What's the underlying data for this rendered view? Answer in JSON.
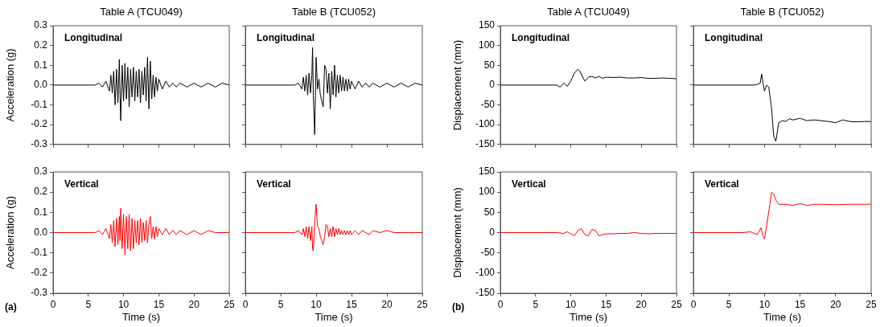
{
  "chart_data": [
    {
      "type": "line",
      "title": "Table A (TCU049)",
      "ylabel": "Acceleration (g)",
      "annotations": [
        "Longitudinal"
      ],
      "marker": "none",
      "tick_labels": "y",
      "xlim": [
        0,
        25
      ],
      "xticks": [
        0,
        5,
        10,
        15,
        20,
        25
      ],
      "ylim": [
        -0.3,
        0.3
      ],
      "yticks": [
        -0.3,
        -0.2,
        -0.1,
        {
          "value": 0,
          "label": "0.0"
        },
        0.1,
        0.2,
        0.3
      ],
      "x": [
        0,
        6,
        6.5,
        7,
        7.5,
        8,
        8.2,
        8.4,
        8.6,
        8.8,
        9,
        9.2,
        9.4,
        9.5,
        9.6,
        9.8,
        10,
        10.2,
        10.4,
        10.6,
        10.8,
        11,
        11.2,
        11.4,
        11.6,
        11.8,
        12,
        12.2,
        12.4,
        12.6,
        12.8,
        13,
        13.2,
        13.4,
        13.6,
        13.8,
        14,
        14.2,
        14.4,
        14.6,
        14.8,
        15,
        15.5,
        16,
        16.5,
        17,
        17.5,
        18,
        19,
        20,
        21,
        22,
        23,
        24,
        25
      ],
      "series": [
        {
          "color": "#000000",
          "values": [
            0,
            0,
            0.01,
            -0.01,
            0.02,
            -0.03,
            0.05,
            -0.04,
            0.07,
            -0.1,
            0.08,
            -0.09,
            0.13,
            -0.05,
            -0.18,
            0.1,
            -0.08,
            0.11,
            -0.07,
            0.09,
            -0.11,
            0.08,
            -0.06,
            0.09,
            -0.08,
            0.07,
            -0.06,
            0.08,
            -0.09,
            0.07,
            -0.05,
            0.09,
            -0.08,
            0.14,
            -0.12,
            0.12,
            -0.07,
            0.05,
            -0.06,
            0.04,
            -0.03,
            0.03,
            -0.02,
            0.02,
            -0.01,
            0.01,
            -0.01,
            0.01,
            -0.01,
            0.01,
            -0.01,
            0.01,
            -0.01,
            0.01,
            0
          ]
        }
      ]
    },
    {
      "type": "line",
      "title": "Table B (TCU052)",
      "annotations": [
        "Longitudinal"
      ],
      "marker": "none",
      "tick_labels": false,
      "xlim": [
        0,
        25
      ],
      "xticks": [
        0,
        5,
        10,
        15,
        20,
        25
      ],
      "ylim": [
        -0.3,
        0.3
      ],
      "yticks": [
        -0.3,
        -0.2,
        -0.1,
        0,
        0.1,
        0.2,
        0.3
      ],
      "x": [
        0,
        6,
        6.5,
        7,
        7.5,
        8,
        8.2,
        8.4,
        8.6,
        8.8,
        9,
        9.2,
        9.4,
        9.5,
        9.6,
        9.8,
        10,
        10.2,
        10.4,
        10.6,
        10.8,
        11,
        11.2,
        11.4,
        11.6,
        11.8,
        12,
        12.2,
        12.4,
        12.6,
        12.8,
        13,
        13.2,
        13.4,
        13.6,
        13.8,
        14,
        14.2,
        14.4,
        14.6,
        14.8,
        15,
        15.5,
        16,
        16.5,
        17,
        17.5,
        18,
        19,
        20,
        21,
        22,
        23,
        24,
        25
      ],
      "series": [
        {
          "color": "#000000",
          "values": [
            0,
            0,
            0,
            0,
            0.01,
            -0.02,
            0.04,
            -0.03,
            0.05,
            -0.05,
            0.06,
            -0.04,
            0.05,
            0.19,
            -0.05,
            -0.25,
            0.14,
            -0.02,
            0.03,
            -0.05,
            -0.08,
            -0.11,
            0.1,
            0.08,
            -0.04,
            0.06,
            -0.12,
            0.07,
            -0.05,
            0.1,
            -0.06,
            0.05,
            -0.04,
            0.05,
            -0.03,
            0.04,
            -0.03,
            0.03,
            -0.03,
            0.03,
            -0.02,
            0.02,
            -0.02,
            0.02,
            -0.01,
            0.01,
            -0.01,
            0.01,
            -0.01,
            0.01,
            -0.01,
            0.01,
            -0.01,
            0.01,
            0
          ]
        }
      ]
    },
    {
      "type": "line",
      "title": "Table A (TCU049)",
      "ylabel": "Displacement (mm)",
      "annotations": [
        "Longitudinal"
      ],
      "marker": "none",
      "tick_labels": "y",
      "xlim": [
        0,
        25
      ],
      "xticks": [
        0,
        5,
        10,
        15,
        20,
        25
      ],
      "ylim": [
        -150,
        150
      ],
      "yticks": [
        -150,
        -100,
        -50,
        0,
        50,
        100,
        150
      ],
      "x": [
        0,
        7,
        8,
        8.5,
        9,
        9.5,
        10,
        10.5,
        11,
        11.3,
        11.7,
        12,
        12.5,
        13,
        13.5,
        14,
        14.5,
        15,
        16,
        17,
        18,
        19,
        20,
        21,
        22,
        23,
        24,
        25
      ],
      "series": [
        {
          "color": "#000000",
          "values": [
            0,
            0,
            0,
            -5,
            5,
            -3,
            10,
            30,
            40,
            35,
            20,
            10,
            20,
            22,
            18,
            22,
            17,
            20,
            19,
            20,
            18,
            18,
            19,
            17,
            17,
            18,
            17,
            16
          ]
        }
      ]
    },
    {
      "type": "line",
      "title": "Table B (TCU052)",
      "annotations": [
        "Longitudinal"
      ],
      "marker": "none",
      "tick_labels": false,
      "xlim": [
        0,
        25
      ],
      "xticks": [
        0,
        5,
        10,
        15,
        20,
        25
      ],
      "ylim": [
        -150,
        150
      ],
      "yticks": [
        -150,
        -100,
        -50,
        0,
        50,
        100,
        150
      ],
      "x": [
        0,
        7,
        8,
        8.5,
        9,
        9.4,
        9.6,
        9.8,
        10,
        10.3,
        10.6,
        11,
        11.3,
        11.6,
        12,
        12.5,
        13,
        13.5,
        14,
        15,
        16,
        17,
        18,
        19,
        20,
        21,
        22,
        23,
        24,
        25
      ],
      "series": [
        {
          "color": "#000000",
          "values": [
            0,
            0,
            0,
            0,
            2,
            5,
            28,
            5,
            -15,
            0,
            -5,
            -60,
            -130,
            -142,
            -95,
            -90,
            -92,
            -85,
            -88,
            -84,
            -90,
            -88,
            -90,
            -92,
            -95,
            -88,
            -92,
            -93,
            -92,
            -92
          ]
        }
      ]
    },
    {
      "type": "line",
      "xlabel": "Time (s)",
      "ylabel": "Acceleration (g)",
      "annotations": [
        "Vertical",
        "(a)"
      ],
      "marker": "none",
      "xlim": [
        0,
        25
      ],
      "xticks": [
        0,
        5,
        10,
        15,
        20,
        25
      ],
      "ylim": [
        -0.3,
        0.3
      ],
      "yticks": [
        -0.3,
        -0.2,
        -0.1,
        {
          "value": 0,
          "label": "0.0"
        },
        0.1,
        0.2,
        0.3
      ],
      "x": [
        0,
        6,
        6.5,
        7,
        7.5,
        8,
        8.2,
        8.4,
        8.6,
        8.8,
        9,
        9.2,
        9.4,
        9.5,
        9.6,
        9.8,
        10,
        10.2,
        10.4,
        10.6,
        10.8,
        11,
        11.2,
        11.4,
        11.6,
        11.8,
        12,
        12.2,
        12.4,
        12.6,
        12.8,
        13,
        13.2,
        13.4,
        13.6,
        13.8,
        14,
        14.2,
        14.4,
        14.6,
        14.8,
        15,
        15.5,
        16,
        16.5,
        17,
        17.5,
        18,
        19,
        20,
        21,
        22,
        23,
        24,
        25
      ],
      "series": [
        {
          "color": "#ff0000",
          "values": [
            0,
            0,
            0.01,
            -0.01,
            0.02,
            -0.03,
            0.04,
            -0.05,
            0.06,
            -0.07,
            0.07,
            -0.06,
            0.08,
            -0.04,
            0.12,
            -0.08,
            0.09,
            -0.11,
            0.08,
            -0.08,
            0.09,
            -0.09,
            0.07,
            -0.08,
            0.06,
            -0.05,
            0.06,
            -0.06,
            0.07,
            -0.05,
            0.05,
            -0.04,
            0.06,
            -0.05,
            0.04,
            0.08,
            -0.03,
            0.03,
            -0.03,
            0.03,
            -0.02,
            0.02,
            -0.01,
            0.02,
            -0.01,
            0.01,
            -0.01,
            0.01,
            -0.01,
            0.01,
            -0.01,
            0.01,
            0,
            0,
            0
          ]
        }
      ]
    },
    {
      "type": "line",
      "xlabel": "Time (s)",
      "annotations": [
        "Vertical"
      ],
      "marker": "none",
      "tick_labels": "x",
      "xlim": [
        0,
        25
      ],
      "xticks": [
        0,
        5,
        10,
        15,
        20,
        25
      ],
      "ylim": [
        -0.3,
        0.3
      ],
      "yticks": [
        -0.3,
        -0.2,
        -0.1,
        0,
        0.1,
        0.2,
        0.3
      ],
      "x": [
        0,
        6,
        6.5,
        7,
        7.5,
        8,
        8.2,
        8.4,
        8.6,
        8.8,
        9,
        9.2,
        9.4,
        9.5,
        9.6,
        9.8,
        10,
        10.2,
        10.4,
        10.6,
        10.8,
        11,
        11.2,
        11.4,
        11.6,
        11.8,
        12,
        12.2,
        12.4,
        12.6,
        12.8,
        13,
        13.2,
        13.4,
        13.6,
        13.8,
        14,
        14.2,
        14.4,
        14.6,
        14.8,
        15,
        15.5,
        16,
        16.5,
        17,
        17.5,
        18,
        19,
        20,
        21,
        22,
        23,
        24,
        25
      ],
      "series": [
        {
          "color": "#ff0000",
          "values": [
            0,
            0,
            0,
            0,
            0.01,
            -0.01,
            0.02,
            -0.02,
            0.03,
            -0.03,
            0.03,
            -0.04,
            0.03,
            -0.08,
            -0.09,
            0.05,
            0.14,
            0.03,
            0.02,
            -0.02,
            -0.04,
            -0.06,
            -0.02,
            0.04,
            0.03,
            -0.02,
            0.02,
            -0.02,
            0.03,
            -0.02,
            0.02,
            -0.01,
            0.02,
            -0.01,
            0.01,
            -0.01,
            0.01,
            -0.01,
            0.01,
            -0.01,
            0.01,
            -0.01,
            0.01,
            -0.01,
            0.01,
            0,
            -0.01,
            0.01,
            0,
            0.01,
            0,
            0,
            0,
            0,
            0
          ]
        }
      ]
    },
    {
      "type": "line",
      "xlabel": "Time (s)",
      "ylabel": "Displacement (mm)",
      "annotations": [
        "Vertical",
        "(b)"
      ],
      "marker": "none",
      "xlim": [
        0,
        25
      ],
      "xticks": [
        0,
        5,
        10,
        15,
        20,
        25
      ],
      "ylim": [
        -150,
        150
      ],
      "yticks": [
        -150,
        -100,
        -50,
        0,
        50,
        100,
        150
      ],
      "x": [
        0,
        7,
        8,
        9,
        9.5,
        10,
        10.5,
        11,
        11.5,
        12,
        12.5,
        13,
        13.5,
        14,
        14.5,
        15,
        16,
        17,
        18,
        19,
        20,
        21,
        22,
        23,
        24,
        25
      ],
      "series": [
        {
          "color": "#ff0000",
          "values": [
            0,
            0,
            0,
            -2,
            2,
            -3,
            -8,
            5,
            10,
            -5,
            -8,
            8,
            5,
            -8,
            -5,
            -3,
            -3,
            -2,
            -2,
            0,
            -2,
            -3,
            -2,
            -2,
            -2,
            -2
          ]
        }
      ]
    },
    {
      "type": "line",
      "xlabel": "Time (s)",
      "annotations": [
        "Vertical"
      ],
      "marker": "none",
      "tick_labels": "x",
      "xlim": [
        0,
        25
      ],
      "xticks": [
        0,
        5,
        10,
        15,
        20,
        25
      ],
      "ylim": [
        -150,
        150
      ],
      "yticks": [
        -150,
        -100,
        -50,
        0,
        50,
        100,
        150
      ],
      "x": [
        0,
        7,
        8,
        9,
        9.5,
        9.8,
        10,
        10.5,
        11,
        11.3,
        11.6,
        12,
        13,
        14,
        15,
        16,
        17,
        18,
        20,
        22,
        25
      ],
      "series": [
        {
          "color": "#ff0000",
          "values": [
            0,
            0,
            2,
            -5,
            12,
            -10,
            -15,
            40,
            100,
            95,
            80,
            70,
            70,
            67,
            72,
            67,
            70,
            70,
            69,
            70,
            70
          ]
        }
      ]
    }
  ]
}
